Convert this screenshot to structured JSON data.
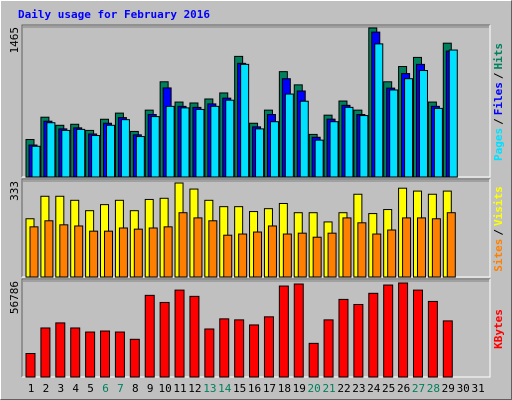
{
  "chart_data": [
    {
      "type": "bar",
      "title": "Daily usage for February 2016",
      "title_color": "#0000ff",
      "ylim": [
        0,
        1465
      ],
      "yticks": [
        1465
      ],
      "legend_separator": "/",
      "series": [
        {
          "name": "Hits",
          "color": "#00805c",
          "values": [
            366,
            584,
            505,
            515,
            455,
            564,
            624,
            445,
            653,
            930,
            732,
            723,
            762,
            821,
            1178,
            525,
            653,
            1029,
            900,
            416,
            604,
            742,
            653,
            1455,
            930,
            1079,
            1168,
            732,
            1307,
            null,
            null
          ]
        },
        {
          "name": "Files",
          "color": "#0000ff",
          "values": [
            312,
            545,
            470,
            480,
            420,
            525,
            580,
            412,
            610,
            870,
            690,
            680,
            714,
            770,
            1110,
            490,
            610,
            960,
            840,
            388,
            565,
            700,
            610,
            1415,
            868,
            1010,
            1100,
            690,
            1230,
            null,
            null
          ]
        },
        {
          "name": "Pages",
          "color": "#00e0ff",
          "values": [
            300,
            530,
            455,
            465,
            405,
            505,
            560,
            395,
            590,
            690,
            675,
            660,
            690,
            750,
            1100,
            470,
            540,
            810,
            740,
            360,
            540,
            680,
            600,
            1300,
            850,
            960,
            1040,
            670,
            1240,
            null,
            null
          ]
        }
      ]
    },
    {
      "type": "bar",
      "ylim": [
        0,
        333
      ],
      "yticks": [
        333
      ],
      "legend_separator": "/",
      "series": [
        {
          "name": "Visits",
          "color": "#ffff00",
          "values": [
            202,
            280,
            280,
            266,
            230,
            251,
            266,
            230,
            269,
            273,
            326,
            305,
            266,
            244,
            244,
            227,
            237,
            255,
            223,
            223,
            191,
            223,
            287,
            220,
            234,
            308,
            298,
            287,
            298,
            null,
            null
          ]
        },
        {
          "name": "Sites",
          "color": "#ff8000",
          "values": [
            174,
            195,
            181,
            177,
            159,
            159,
            170,
            166,
            170,
            174,
            223,
            205,
            195,
            145,
            149,
            156,
            177,
            149,
            152,
            138,
            152,
            205,
            188,
            149,
            163,
            205,
            205,
            202,
            223,
            null,
            null
          ]
        }
      ]
    },
    {
      "type": "bar",
      "ylim": [
        0,
        56786
      ],
      "yticks": [
        56786
      ],
      "categories": [
        "1",
        "2",
        "3",
        "4",
        "5",
        "6",
        "7",
        "8",
        "9",
        "10",
        "11",
        "12",
        "13",
        "14",
        "15",
        "16",
        "17",
        "18",
        "19",
        "20",
        "21",
        "22",
        "23",
        "24",
        "25",
        "26",
        "27",
        "28",
        "29",
        "30",
        "31"
      ],
      "category_colors": [
        "#000000",
        "#000000",
        "#000000",
        "#000000",
        "#000000",
        "#00805c",
        "#00805c",
        "#000000",
        "#000000",
        "#000000",
        "#000000",
        "#000000",
        "#00805c",
        "#00805c",
        "#000000",
        "#000000",
        "#000000",
        "#000000",
        "#000000",
        "#00805c",
        "#00805c",
        "#000000",
        "#000000",
        "#000000",
        "#000000",
        "#000000",
        "#00805c",
        "#00805c",
        "#000000",
        "#000000",
        "#000000"
      ],
      "series": [
        {
          "name": "KBytes",
          "color": "#ff0000",
          "values": [
            13900,
            29000,
            32000,
            29000,
            26600,
            27200,
            26600,
            22300,
            48300,
            44100,
            51400,
            47700,
            28400,
            34400,
            33800,
            30800,
            35600,
            53800,
            55000,
            19900,
            33800,
            45900,
            42900,
            49500,
            54400,
            55600,
            51400,
            44700,
            33200,
            null,
            null
          ]
        }
      ]
    }
  ]
}
